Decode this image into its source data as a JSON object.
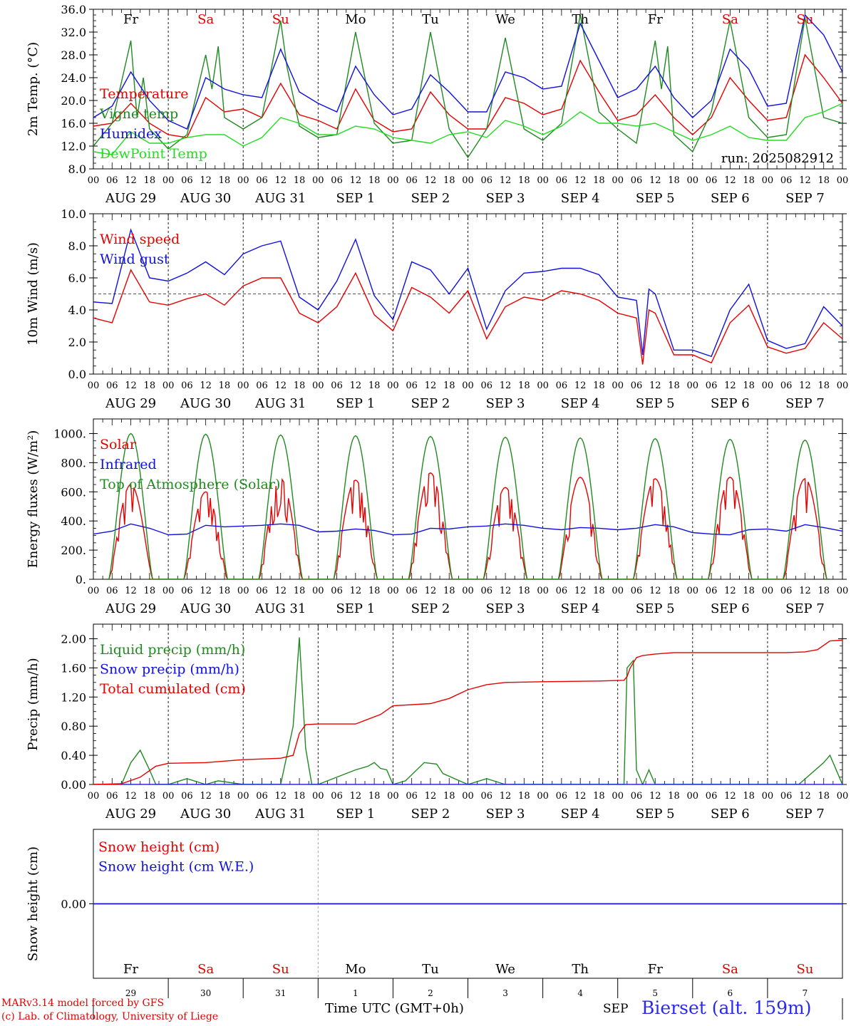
{
  "days": [
    "Fr",
    "Sa",
    "Su",
    "Mo",
    "Tu",
    "We",
    "Th",
    "Fr",
    "Sa",
    "Su"
  ],
  "day_colors": [
    "#000000",
    "#e00000",
    "#e00000",
    "#000000",
    "#000000",
    "#000000",
    "#000000",
    "#000000",
    "#e00000",
    "#e00000"
  ],
  "dates": [
    "AUG 29",
    "AUG 30",
    "AUG 31",
    "SEP  1",
    "SEP  2",
    "SEP  3",
    "SEP  4",
    "SEP  5",
    "SEP  6",
    "SEP  7"
  ],
  "day_numbers": [
    "29",
    "30",
    "31",
    "1",
    "2",
    "3",
    "4",
    "5",
    "6",
    "7"
  ],
  "hour_ticks": [
    "00",
    "06",
    "12",
    "18"
  ],
  "hour_last": "00",
  "run_label": "run: 2025082912",
  "footer": {
    "model": "MARv3.14 model forced by GFS",
    "copyright": "(c) Lab. of Climatology, University of Liege",
    "xlabel": "Time UTC (GMT+0h)",
    "month": "SEP",
    "station": "Bierset (alt. 159m)"
  },
  "colors": {
    "red": "#e60000",
    "green": "#1f8a1f",
    "blue": "#1010e0",
    "lightgreen": "#22dd22",
    "station": "#2a2aee"
  },
  "chart_data": [
    {
      "type": "line",
      "ylabel": "2m Temp. (°C)",
      "ylim": [
        8,
        36
      ],
      "yticks": [
        8,
        12,
        16,
        20,
        24,
        28,
        32,
        36
      ],
      "ytick_labels": [
        "8.0",
        "12.0",
        "16.0",
        "20.0",
        "24.0",
        "28.0",
        "32.0",
        "36.0"
      ],
      "x_unit": "hours since AUG 29 00 UTC",
      "xlim": [
        0,
        240
      ],
      "series": [
        {
          "name": "Temperature",
          "color": "red",
          "x": [
            0,
            6,
            12,
            18,
            24,
            30,
            36,
            42,
            48,
            54,
            60,
            66,
            72,
            78,
            84,
            90,
            96,
            102,
            108,
            114,
            120,
            126,
            132,
            138,
            144,
            150,
            156,
            162,
            168,
            174,
            180,
            186,
            192,
            198,
            204,
            210,
            216,
            222,
            228,
            234,
            240
          ],
          "values": [
            15.5,
            16,
            19.5,
            16,
            14,
            13.5,
            20.5,
            18,
            18.5,
            17,
            23,
            17.5,
            16.5,
            15,
            22,
            16.5,
            14.5,
            15,
            21.5,
            17.5,
            15,
            15,
            20.5,
            19.5,
            17.5,
            18.5,
            27,
            21.5,
            16.5,
            17.5,
            21,
            17,
            14,
            17,
            24,
            20,
            16.5,
            17,
            28,
            24,
            19.5
          ]
        },
        {
          "name": "Vigne temp",
          "color": "green",
          "x": [
            0,
            6,
            12,
            14,
            16,
            18,
            24,
            30,
            36,
            38,
            40,
            42,
            48,
            54,
            60,
            62,
            66,
            72,
            78,
            84,
            90,
            96,
            102,
            108,
            114,
            120,
            126,
            132,
            138,
            144,
            150,
            156,
            162,
            168,
            174,
            180,
            182,
            184,
            186,
            192,
            198,
            204,
            210,
            216,
            222,
            228,
            234,
            240
          ],
          "values": [
            12,
            16,
            30.5,
            17,
            24,
            15,
            11.5,
            14,
            28,
            22,
            29.5,
            17,
            15,
            17,
            34,
            26,
            15.5,
            13.5,
            14,
            32,
            16,
            12.5,
            13,
            32,
            15,
            10,
            15,
            31,
            15,
            13,
            16,
            35,
            18,
            15,
            12.5,
            30.5,
            22,
            29.5,
            14,
            11,
            18,
            34,
            17,
            13.5,
            14,
            34.5,
            17,
            16
          ]
        },
        {
          "name": "Humidex",
          "color": "blue",
          "x": [
            0,
            6,
            12,
            18,
            24,
            30,
            36,
            42,
            48,
            54,
            60,
            66,
            72,
            78,
            84,
            90,
            96,
            102,
            108,
            114,
            120,
            126,
            132,
            138,
            144,
            150,
            156,
            162,
            168,
            174,
            180,
            186,
            192,
            198,
            204,
            210,
            216,
            222,
            228,
            234,
            240
          ],
          "values": [
            17,
            19,
            25,
            20,
            16.5,
            15,
            24,
            22,
            21,
            20.5,
            29,
            21.5,
            19.5,
            18,
            26,
            21,
            17.5,
            18.5,
            24.5,
            21.5,
            18,
            18,
            25,
            24,
            22,
            22.5,
            33.5,
            27,
            20.5,
            22,
            26,
            20.5,
            17,
            20,
            29,
            25.5,
            19,
            19.5,
            35,
            31.5,
            25
          ]
        },
        {
          "name": "DewPoint Temp",
          "color": "lightgreen",
          "x": [
            0,
            6,
            12,
            18,
            24,
            30,
            36,
            42,
            48,
            54,
            60,
            66,
            72,
            78,
            84,
            90,
            96,
            102,
            108,
            114,
            120,
            126,
            132,
            138,
            144,
            150,
            156,
            162,
            168,
            174,
            180,
            186,
            192,
            198,
            204,
            210,
            216,
            222,
            228,
            234,
            240
          ],
          "values": [
            11,
            10.5,
            14.5,
            12.5,
            12.5,
            13.5,
            14,
            14,
            12,
            13.5,
            17,
            16,
            14,
            14,
            15.5,
            15,
            13.5,
            13,
            12.5,
            14,
            14.5,
            13.5,
            16.5,
            15.5,
            14,
            15.5,
            18,
            16,
            16,
            15.5,
            16,
            14.5,
            13,
            14,
            15.5,
            13.5,
            13,
            13,
            17,
            18,
            19.5
          ]
        }
      ]
    },
    {
      "type": "line",
      "ylabel": "10m Wind (m/s)",
      "ylim": [
        0,
        10
      ],
      "yticks": [
        0,
        2,
        4,
        6,
        8,
        10
      ],
      "ytick_labels": [
        "0.0",
        "2.0",
        "4.0",
        "6.0",
        "8.0",
        "10.0"
      ],
      "reference_line": 5,
      "xlim": [
        0,
        240
      ],
      "series": [
        {
          "name": "Wind speed",
          "color": "red",
          "x": [
            0,
            6,
            12,
            18,
            24,
            30,
            36,
            42,
            48,
            54,
            60,
            66,
            72,
            78,
            84,
            90,
            96,
            102,
            108,
            114,
            120,
            126,
            132,
            138,
            144,
            150,
            156,
            162,
            168,
            174,
            176,
            178,
            180,
            186,
            192,
            198,
            204,
            210,
            216,
            222,
            228,
            234,
            240
          ],
          "values": [
            3.5,
            3.2,
            6.5,
            4.5,
            4.3,
            4.7,
            5,
            4.3,
            5.5,
            6,
            6,
            3.8,
            3.2,
            4.2,
            6.3,
            3.7,
            2.7,
            5.4,
            4.8,
            3.8,
            5.2,
            2.2,
            4.2,
            4.8,
            4.6,
            5.2,
            5,
            4.6,
            3.8,
            3.5,
            0.6,
            4,
            3.8,
            1.2,
            1.2,
            0.7,
            3.2,
            4.3,
            1.7,
            1.3,
            1.6,
            3.2,
            2.2
          ]
        },
        {
          "name": "Wind gust",
          "color": "blue",
          "x": [
            0,
            6,
            12,
            18,
            24,
            30,
            36,
            42,
            48,
            54,
            60,
            66,
            72,
            78,
            84,
            90,
            96,
            102,
            108,
            114,
            120,
            126,
            132,
            138,
            144,
            150,
            156,
            162,
            168,
            174,
            176,
            178,
            180,
            186,
            192,
            198,
            204,
            210,
            216,
            222,
            228,
            234,
            240
          ],
          "values": [
            4.5,
            4.4,
            9,
            6,
            5.8,
            6.3,
            7,
            6.2,
            7.5,
            8,
            8.3,
            4.8,
            4,
            5.8,
            8.4,
            4.9,
            3.4,
            7,
            6.5,
            5,
            6.6,
            2.8,
            5.2,
            6.3,
            6.4,
            6.6,
            6.6,
            6.2,
            4.8,
            4.6,
            1.2,
            5.3,
            5,
            1.5,
            1.5,
            1.1,
            4,
            5.6,
            2.1,
            1.6,
            1.9,
            4.2,
            3
          ]
        }
      ]
    },
    {
      "type": "line",
      "ylabel": "Energy fluxes (W/m²)",
      "ylim": [
        0,
        1100
      ],
      "yticks": [
        0,
        200,
        400,
        600,
        800,
        1000
      ],
      "ytick_labels": [
        "0.",
        "200.",
        "400.",
        "600.",
        "800.",
        "1000."
      ],
      "xlim": [
        0,
        240
      ],
      "series": [
        {
          "name": "Solar",
          "color": "red",
          "peaks": [
            650,
            600,
            690,
            680,
            730,
            630,
            700,
            690,
            700,
            690
          ]
        },
        {
          "name": "Infrared",
          "color": "blue",
          "x": [
            0,
            6,
            12,
            18,
            24,
            30,
            36,
            42,
            48,
            54,
            60,
            66,
            72,
            78,
            84,
            90,
            96,
            102,
            108,
            114,
            120,
            126,
            132,
            138,
            144,
            150,
            156,
            162,
            168,
            174,
            180,
            186,
            192,
            198,
            204,
            210,
            216,
            222,
            228,
            234,
            240
          ],
          "values": [
            310,
            330,
            380,
            350,
            305,
            310,
            370,
            360,
            365,
            370,
            380,
            370,
            325,
            330,
            345,
            335,
            305,
            310,
            350,
            345,
            360,
            365,
            380,
            370,
            350,
            340,
            355,
            350,
            340,
            350,
            375,
            360,
            320,
            310,
            305,
            340,
            345,
            330,
            375,
            355,
            330
          ]
        },
        {
          "name": "Top of Atmosphere (Solar)",
          "color": "green",
          "peaks": [
            1000,
            995,
            990,
            985,
            980,
            975,
            970,
            965,
            960,
            955
          ]
        }
      ]
    },
    {
      "type": "line",
      "ylabel": "Precip (mm/h)",
      "ylim": [
        0,
        2.2
      ],
      "yticks": [
        0,
        0.4,
        0.8,
        1.2,
        1.6,
        2.0
      ],
      "ytick_labels": [
        "0.00",
        "0.40",
        "0.80",
        "1.20",
        "1.60",
        "2.00"
      ],
      "xlim": [
        0,
        240
      ],
      "series": [
        {
          "name": "Liquid precip (mm/h)",
          "color": "green",
          "x": [
            0,
            9,
            12,
            15,
            18,
            20,
            24,
            30,
            36,
            40,
            48,
            60,
            64,
            66,
            68,
            70,
            72,
            84,
            88,
            90,
            92,
            94,
            96,
            100,
            106,
            110,
            112,
            120,
            126,
            132,
            144,
            162,
            170,
            171,
            173,
            174,
            176,
            178,
            180,
            186,
            210,
            226,
            234,
            236,
            240
          ],
          "values": [
            0,
            0,
            0.3,
            0.47,
            0.2,
            0,
            0,
            0.08,
            0,
            0.05,
            0,
            0,
            0.8,
            2.02,
            0.5,
            0,
            0,
            0.2,
            0.25,
            0.3,
            0.22,
            0.2,
            0,
            0.05,
            0.3,
            0.28,
            0.15,
            0,
            0.08,
            0,
            0,
            0,
            0,
            1.6,
            1.7,
            0.2,
            0,
            0.2,
            0,
            0,
            0,
            0,
            0.3,
            0.4,
            0
          ]
        },
        {
          "name": "Snow precip (mm/h)",
          "color": "blue",
          "x": [
            0,
            240
          ],
          "values": [
            0,
            0
          ]
        },
        {
          "name": "Total cumulated (cm)",
          "color": "red",
          "x": [
            0,
            9,
            15,
            20,
            24,
            36,
            48,
            60,
            64,
            66,
            68,
            72,
            84,
            92,
            96,
            108,
            114,
            120,
            126,
            132,
            144,
            162,
            170,
            171,
            172,
            174,
            176,
            180,
            186,
            222,
            228,
            232,
            236,
            240
          ],
          "values": [
            0,
            0.01,
            0.1,
            0.25,
            0.29,
            0.3,
            0.34,
            0.36,
            0.4,
            0.7,
            0.82,
            0.83,
            0.83,
            0.96,
            1.08,
            1.11,
            1.18,
            1.3,
            1.37,
            1.4,
            1.41,
            1.42,
            1.43,
            1.48,
            1.6,
            1.74,
            1.77,
            1.79,
            1.81,
            1.81,
            1.82,
            1.85,
            1.97,
            1.98
          ]
        }
      ]
    },
    {
      "type": "line",
      "ylabel": "Snow height (cm)",
      "ylim": [
        -1,
        1
      ],
      "yticks": [
        0
      ],
      "ytick_labels": [
        "0.00"
      ],
      "xlim": [
        0,
        240
      ],
      "series": [
        {
          "name": "Snow height (cm)",
          "color": "red",
          "x": [
            0,
            240
          ],
          "values": [
            0,
            0
          ]
        },
        {
          "name": "Snow height (cm W.E.)",
          "color": "blue",
          "x": [
            0,
            240
          ],
          "values": [
            0,
            0
          ]
        }
      ]
    }
  ]
}
